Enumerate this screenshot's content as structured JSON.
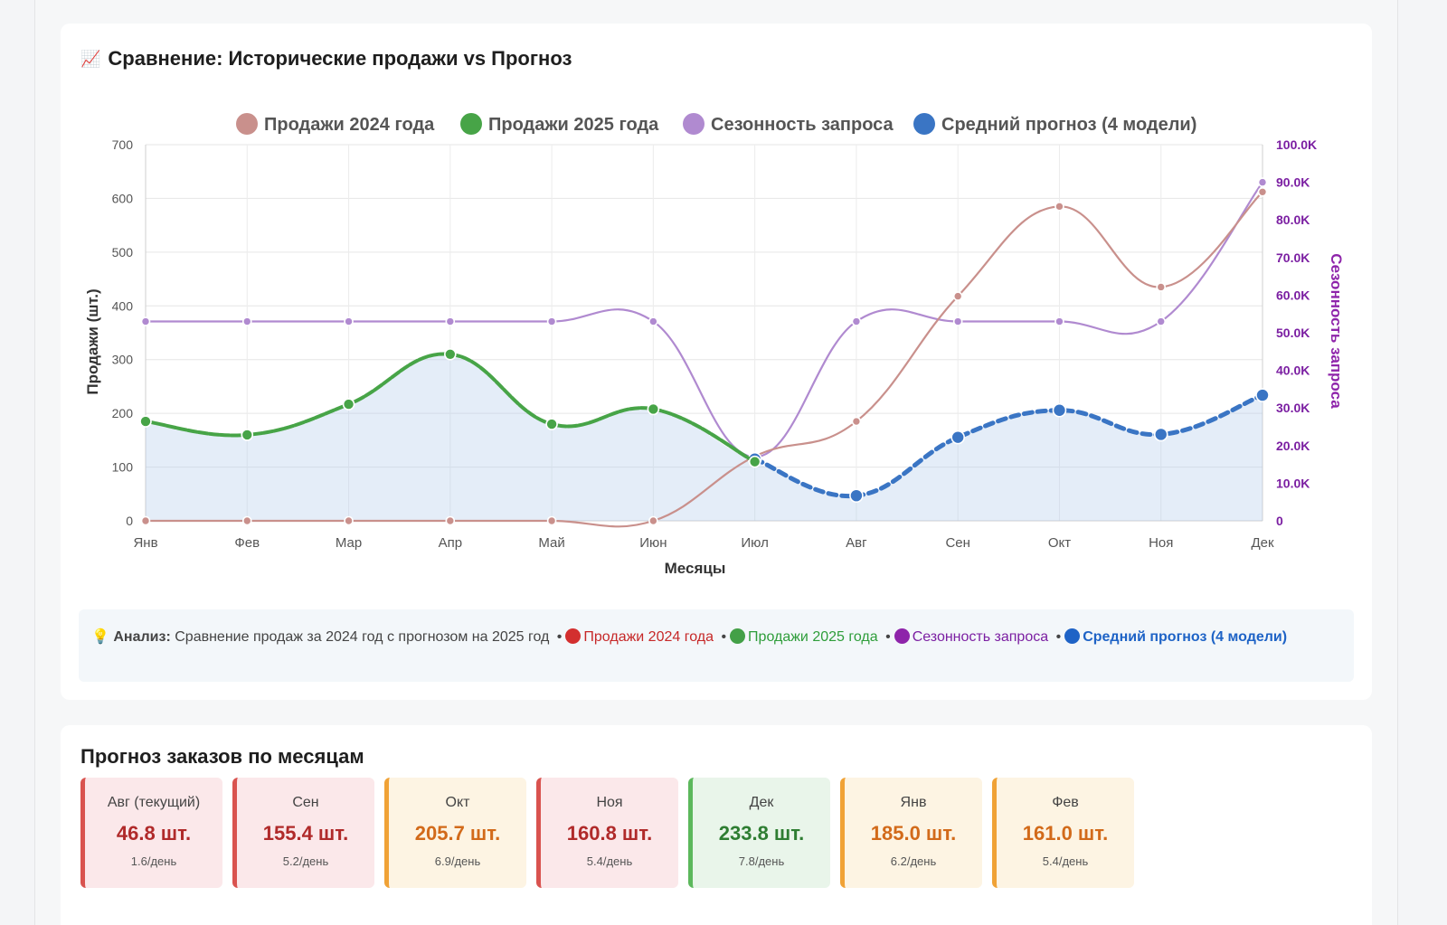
{
  "chart_section": {
    "title_icon": "📈",
    "title": "Сравнение: Исторические продажи vs Прогноз"
  },
  "chart_data": {
    "type": "line",
    "categories": [
      "Янв",
      "Фев",
      "Мар",
      "Апр",
      "Май",
      "Июн",
      "Июл",
      "Авг",
      "Сен",
      "Окт",
      "Ноя",
      "Дек"
    ],
    "xlabel": "Месяцы",
    "ylabel": "Продажи (шт.)",
    "y2label": "Сезонность запроса",
    "ylim": [
      0,
      700
    ],
    "y2lim": [
      0,
      100000
    ],
    "yticks": [
      "0",
      "100",
      "200",
      "300",
      "400",
      "500",
      "600",
      "700"
    ],
    "y2ticks": [
      "0",
      "10.0K",
      "20.0K",
      "30.0K",
      "40.0K",
      "50.0K",
      "60.0K",
      "70.0K",
      "80.0K",
      "90.0K",
      "100.0K"
    ],
    "grid": true,
    "legend_position": "top",
    "series": [
      {
        "name": "Продажи 2024 года",
        "axis": "left",
        "color": "#c9908c",
        "values": [
          0,
          0,
          0,
          0,
          0,
          0,
          120,
          185,
          418,
          585,
          435,
          612
        ]
      },
      {
        "name": "Продажи 2025 года",
        "axis": "left",
        "color": "#47a447",
        "values": [
          185,
          160,
          217,
          310,
          180,
          208,
          110,
          null,
          null,
          null,
          null,
          null
        ]
      },
      {
        "name": "Сезонность запроса",
        "axis": "right",
        "color": "#b08ad0",
        "values": [
          53000,
          53000,
          53000,
          53000,
          53000,
          53000,
          17000,
          53000,
          53000,
          53000,
          53000,
          90000
        ]
      },
      {
        "name": "Средний прогноз (4 модели)",
        "axis": "left",
        "color": "#3a75c4",
        "values": [
          null,
          null,
          null,
          null,
          null,
          null,
          115,
          46.8,
          155.4,
          205.7,
          160.8,
          233.8
        ]
      }
    ]
  },
  "analysis": {
    "icon": "💡",
    "label": "Анализ:",
    "text": "Сравнение продаж за 2024 год с прогнозом на 2025 год",
    "items": [
      "Продажи 2024 года",
      "Продажи 2025 года",
      "Сезонность запроса",
      "Средний прогноз (4 модели)"
    ],
    "dot_colors": [
      "#d32f2f",
      "#43a047",
      "#8e24aa",
      "#1e63c6"
    ]
  },
  "forecast": {
    "title": "Прогноз заказов по месяцам",
    "cards": [
      {
        "month": "Авг (текущий)",
        "value": "46.8 шт.",
        "per_day": "1.6/день",
        "status": "red"
      },
      {
        "month": "Сен",
        "value": "155.4 шт.",
        "per_day": "5.2/день",
        "status": "red"
      },
      {
        "month": "Окт",
        "value": "205.7 шт.",
        "per_day": "6.9/день",
        "status": "orange"
      },
      {
        "month": "Ноя",
        "value": "160.8 шт.",
        "per_day": "5.4/день",
        "status": "red"
      },
      {
        "month": "Дек",
        "value": "233.8 шт.",
        "per_day": "7.8/день",
        "status": "green"
      },
      {
        "month": "Янв",
        "value": "185.0 шт.",
        "per_day": "6.2/день",
        "status": "orange"
      },
      {
        "month": "Фев",
        "value": "161.0 шт.",
        "per_day": "5.4/день",
        "status": "orange"
      }
    ]
  }
}
